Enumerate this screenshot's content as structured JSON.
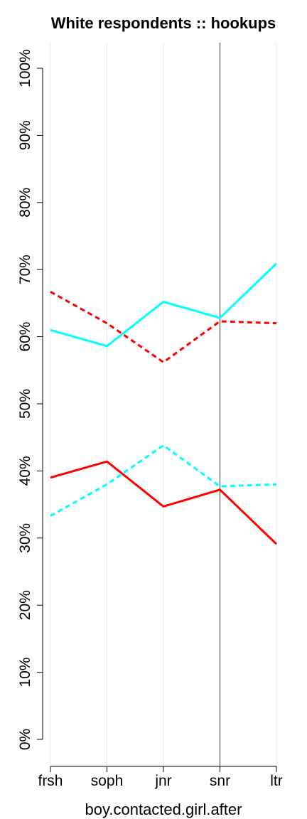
{
  "chart_data": {
    "type": "line",
    "title": "White respondents :: hookups",
    "xlabel": "boy.contacted.girl.after",
    "ylabel": "",
    "categories": [
      "frsh",
      "soph",
      "jnr",
      "snr",
      "ltr"
    ],
    "ylim": [
      0,
      100
    ],
    "yticks": [
      "0%",
      "10%",
      "20%",
      "30%",
      "40%",
      "50%",
      "60%",
      "70%",
      "80%",
      "90%",
      "100%"
    ],
    "vertical_marker": "snr",
    "grid": "vertical",
    "series": [
      {
        "color": "#00FFFF",
        "dash": "solid",
        "values": [
          61.0,
          58.6,
          65.2,
          62.8,
          70.9
        ]
      },
      {
        "color": "#FF0000",
        "dash": "dotted",
        "values": [
          66.7,
          62.0,
          56.2,
          62.3,
          62.0
        ]
      },
      {
        "color": "#00FFFF",
        "dash": "dotted",
        "values": [
          33.3,
          38.0,
          43.8,
          37.7,
          38.0
        ]
      },
      {
        "color": "#FF0000",
        "dash": "solid",
        "values": [
          39.0,
          41.4,
          34.7,
          37.2,
          29.1
        ]
      }
    ]
  }
}
